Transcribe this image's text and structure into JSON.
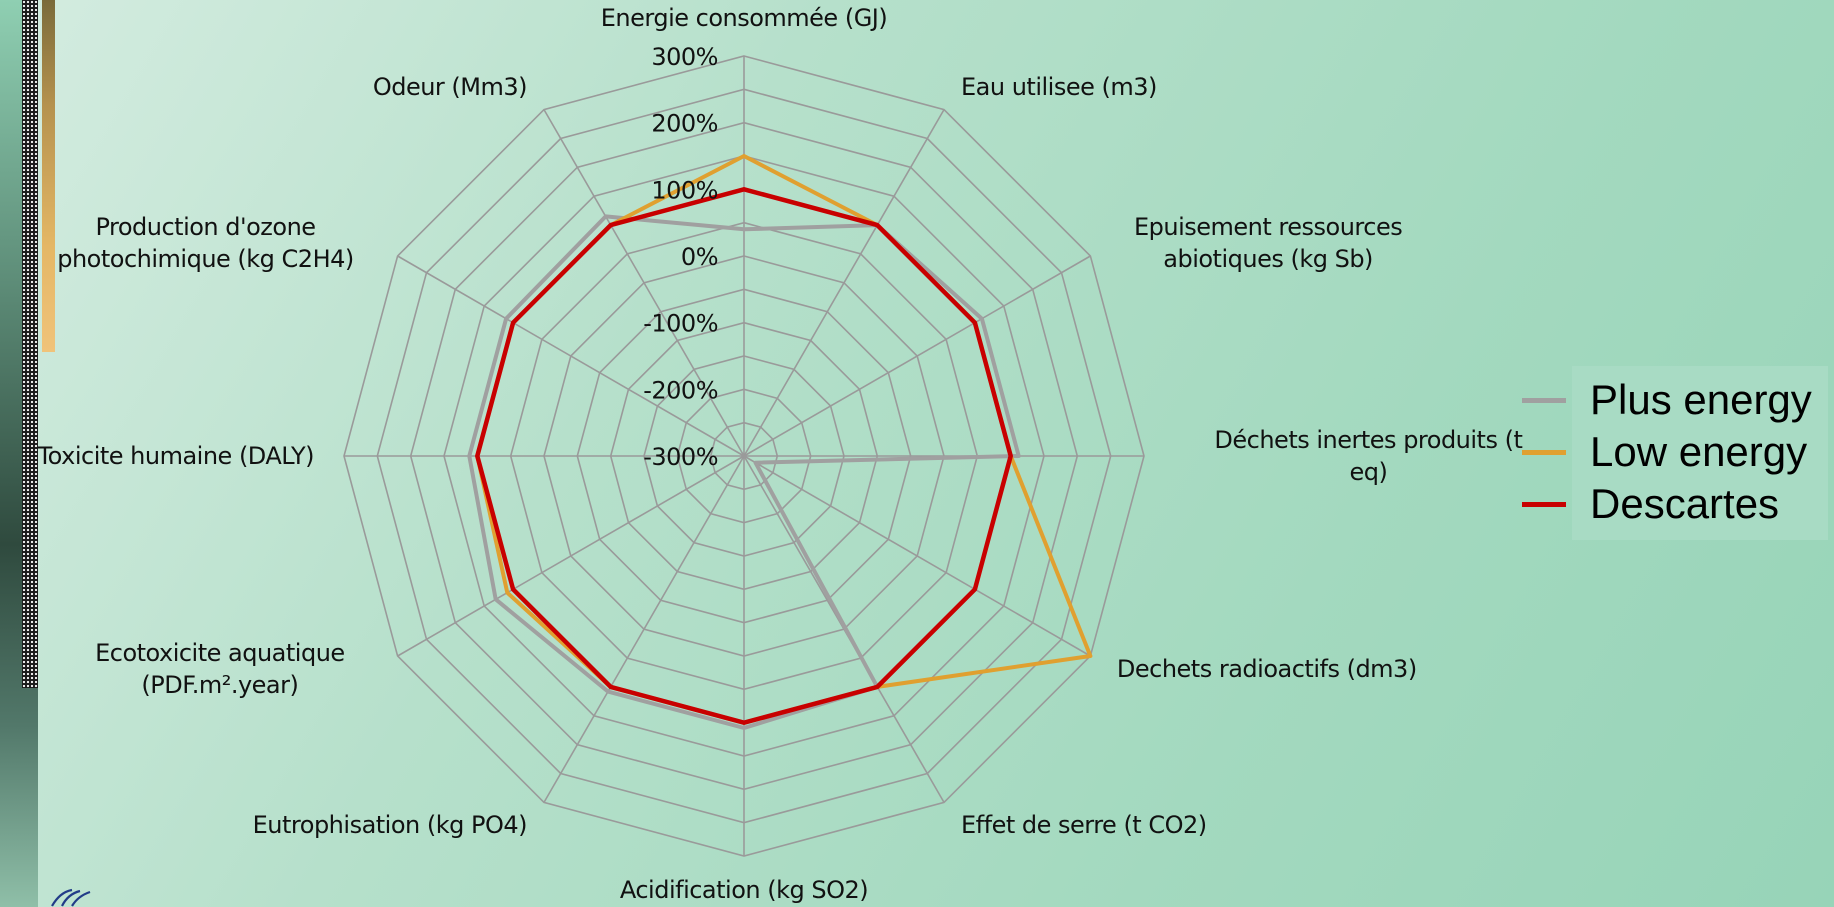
{
  "chart_data": {
    "type": "radar",
    "axes": [
      [
        "Energie consommée (GJ)"
      ],
      [
        "Eau utilisee (m3)"
      ],
      [
        "Epuisement ressources",
        "abiotiques (kg Sb)"
      ],
      [
        "Déchets inertes produits (t",
        "eq)"
      ],
      [
        "Dechets radioactifs (dm3)"
      ],
      [
        "Effet de serre  (t CO2)"
      ],
      [
        "Acidification (kg SO2)"
      ],
      [
        "Eutrophisation (kg PO4)"
      ],
      [
        "Ecotoxicite aquatique",
        "(PDF.m².year)"
      ],
      [
        "Toxicite humaine (DALY)"
      ],
      [
        "Production d'ozone",
        "photochimique (kg C2H4)"
      ],
      [
        "Odeur (Mm3)"
      ]
    ],
    "r_ticks": [
      -300,
      -200,
      -100,
      0,
      100,
      200,
      300
    ],
    "r_tick_labels": [
      "-300%",
      "-200%",
      "-100%",
      "0%",
      "100%",
      "200%",
      "300%"
    ],
    "r_range": [
      -300,
      300
    ],
    "grid": true,
    "legend_position": "right",
    "series": [
      {
        "name": "Plus energy",
        "color": "#a0a0a0",
        "values": [
          40,
          100,
          112,
          112,
          -280,
          100,
          108,
          108,
          130,
          112,
          112,
          115
        ]
      },
      {
        "name": "Low energy",
        "color": "#e0a030",
        "values": [
          150,
          100,
          100,
          100,
          300,
          100,
          100,
          100,
          110,
          100,
          100,
          100
        ]
      },
      {
        "name": "Descartes",
        "color": "#c80000",
        "values": [
          100,
          100,
          100,
          100,
          100,
          100,
          100,
          100,
          100,
          100,
          100,
          100
        ]
      }
    ]
  }
}
